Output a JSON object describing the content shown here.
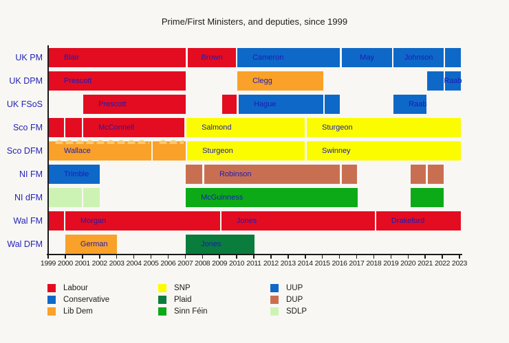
{
  "title": "Prime/First Ministers, and deputies, since 1999",
  "chart_data": {
    "type": "timeline",
    "title": "Prime/First Ministers, and deputies, since 1999",
    "x_axis": {
      "min": 1999,
      "max": 2023,
      "ticks": [
        1999,
        2000,
        2001,
        2002,
        2003,
        2004,
        2005,
        2006,
        2007,
        2008,
        2009,
        2010,
        2011,
        2012,
        2013,
        2014,
        2015,
        2016,
        2017,
        2018,
        2019,
        2020,
        2021,
        2022,
        2023
      ]
    },
    "party_colors": {
      "labour": "#e40c20",
      "conservative": "#0e68c8",
      "libdem": "#f9a128",
      "snp": "#fcfc00",
      "plaid": "#0a7c3c",
      "sinnfein": "#0daa18",
      "uup": "#0e68c8",
      "dup": "#c96f51",
      "sdlp": "#cdf3b4"
    },
    "rows": [
      {
        "label": "UK PM",
        "bars": [
          {
            "name": "Blair",
            "party": "labour",
            "start": 1999.04,
            "end": 2007.03,
            "align": "left"
          },
          {
            "name": "Brown",
            "party": "labour",
            "start": 2007.15,
            "end": 2009.96,
            "align": "center"
          },
          {
            "name": "Cameron",
            "party": "conservative",
            "start": 2010.04,
            "end": 2016.02,
            "align": "left"
          },
          {
            "name": "May",
            "party": "conservative",
            "start": 2016.14,
            "end": 2019.07,
            "align": "center"
          },
          {
            "name": "Johnson",
            "party": "conservative",
            "start": 2019.15,
            "end": 2022.08,
            "align": "center"
          },
          {
            "name": "",
            "party": "conservative",
            "start": 2022.16,
            "end": 2023.08
          }
        ]
      },
      {
        "label": "UK DPM",
        "bars": [
          {
            "name": "Prescott",
            "party": "labour",
            "start": 1999.04,
            "end": 2007.03,
            "align": "left"
          },
          {
            "name": "Clegg",
            "party": "libdem",
            "start": 2010.04,
            "end": 2015.05,
            "align": "left"
          },
          {
            "name": "",
            "party": "conservative",
            "start": 2021.11,
            "end": 2022.08
          },
          {
            "name": "Raab",
            "party": "conservative",
            "start": 2022.16,
            "end": 2023.08,
            "align": "center"
          }
        ]
      },
      {
        "label": "UK FSoS",
        "bars": [
          {
            "name": "Prescott",
            "party": "labour",
            "start": 2001.05,
            "end": 2007.03,
            "align": "left"
          },
          {
            "name": "",
            "party": "labour",
            "start": 2009.15,
            "end": 2010.0
          },
          {
            "name": "Hague",
            "party": "conservative",
            "start": 2010.12,
            "end": 2015.05,
            "align": "left"
          },
          {
            "name": "",
            "party": "conservative",
            "start": 2015.13,
            "end": 2016.02
          },
          {
            "name": "Raab",
            "party": "conservative",
            "start": 2019.15,
            "end": 2021.07,
            "align": "left"
          }
        ]
      },
      {
        "label": "Sco FM",
        "bars": [
          {
            "name": "",
            "party": "labour",
            "start": 1999.04,
            "end": 1999.92
          },
          {
            "name": "",
            "party": "labour",
            "start": 2000.0,
            "end": 2000.97
          },
          {
            "name": "McConnell",
            "party": "labour",
            "start": 2001.05,
            "end": 2006.95,
            "align": "left"
          },
          {
            "name": "Salmond",
            "party": "snp",
            "start": 2007.07,
            "end": 2013.97,
            "align": "left"
          },
          {
            "name": "Sturgeon",
            "party": "snp",
            "start": 2014.09,
            "end": 2023.08,
            "align": "left"
          }
        ]
      },
      {
        "label": "Sco DFM",
        "bars": [
          {
            "name": "Wallace",
            "party": "libdem",
            "start": 1999.04,
            "end": 2005.02,
            "align": "left",
            "scalloped": true
          },
          {
            "name": "",
            "party": "libdem",
            "start": 2005.1,
            "end": 2007.03,
            "scalloped": true
          },
          {
            "name": "Sturgeon",
            "party": "snp",
            "start": 2007.11,
            "end": 2013.97,
            "align": "left"
          },
          {
            "name": "Swinney",
            "party": "snp",
            "start": 2014.09,
            "end": 2023.08,
            "align": "left"
          }
        ]
      },
      {
        "label": "NI FM",
        "bars": [
          {
            "name": "Trimble",
            "party": "uup",
            "start": 1999.04,
            "end": 2002.01,
            "align": "left"
          },
          {
            "name": "",
            "party": "dup",
            "start": 2007.03,
            "end": 2007.99
          },
          {
            "name": "Robinson",
            "party": "dup",
            "start": 2008.11,
            "end": 2016.02,
            "align": "left"
          },
          {
            "name": "",
            "party": "dup",
            "start": 2016.14,
            "end": 2017.02
          },
          {
            "name": "",
            "party": "dup",
            "start": 2020.15,
            "end": 2021.03
          },
          {
            "name": "",
            "party": "dup",
            "start": 2021.15,
            "end": 2022.08
          }
        ]
      },
      {
        "label": "NI dFM",
        "bars": [
          {
            "name": "",
            "party": "sdlp",
            "start": 1999.04,
            "end": 2000.97
          },
          {
            "name": "",
            "party": "sdlp",
            "start": 2001.05,
            "end": 2002.01
          },
          {
            "name": "McGuinness",
            "party": "sinnfein",
            "start": 2007.03,
            "end": 2017.06,
            "align": "left"
          },
          {
            "name": "",
            "party": "sinnfein",
            "start": 2020.15,
            "end": 2022.08
          }
        ]
      },
      {
        "label": "Wal FM",
        "bars": [
          {
            "name": "",
            "party": "labour",
            "start": 1999.04,
            "end": 1999.92
          },
          {
            "name": "Morgan",
            "party": "labour",
            "start": 2000.0,
            "end": 2009.03,
            "align": "left"
          },
          {
            "name": "Jones",
            "party": "labour",
            "start": 2009.11,
            "end": 2018.06,
            "align": "left"
          },
          {
            "name": "Drakeford",
            "party": "labour",
            "start": 2018.14,
            "end": 2023.08,
            "align": "left"
          }
        ]
      },
      {
        "label": "Wal DFM",
        "bars": [
          {
            "name": "German",
            "party": "libdem",
            "start": 2000.0,
            "end": 2003.01,
            "align": "left"
          },
          {
            "name": "Jones",
            "party": "plaid",
            "start": 2007.03,
            "end": 2011.04,
            "align": "left"
          }
        ]
      }
    ],
    "legend_columns": [
      [
        {
          "label": "Labour",
          "party": "labour"
        },
        {
          "label": "Conservative",
          "party": "conservative"
        },
        {
          "label": "Lib Dem",
          "party": "libdem"
        }
      ],
      [
        {
          "label": "SNP",
          "party": "snp"
        },
        {
          "label": "Plaid",
          "party": "plaid"
        },
        {
          "label": "Sinn Féin",
          "party": "sinnfein"
        }
      ],
      [
        {
          "label": "UUP",
          "party": "uup"
        },
        {
          "label": "DUP",
          "party": "dup"
        },
        {
          "label": "SDLP",
          "party": "sdlp"
        }
      ]
    ]
  }
}
